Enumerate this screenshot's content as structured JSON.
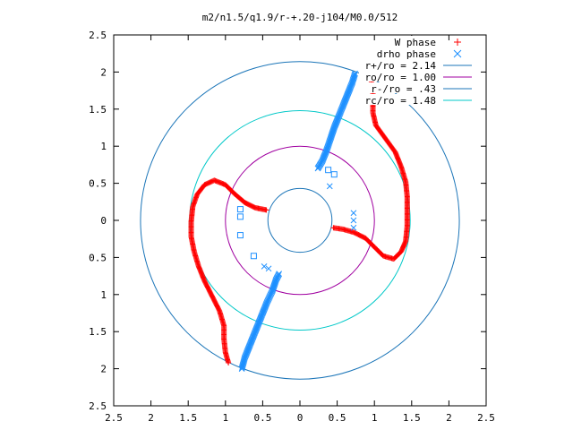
{
  "chart_data": {
    "type": "scatter",
    "title": "m2/n1.5/q1.9/r-+.20-j104/M0.0/512",
    "xlabel": "",
    "ylabel": "",
    "xlim": [
      -2.5,
      2.5
    ],
    "ylim": [
      -2.5,
      2.5
    ],
    "x_tick_values": [
      -2.5,
      -2,
      -1.5,
      -1,
      -0.5,
      0,
      0.5,
      1,
      1.5,
      2,
      2.5
    ],
    "x_tick_labels": [
      "2.5",
      "2",
      "1.5",
      "1",
      "0.5",
      "0",
      "0.5",
      "1",
      "1.5",
      "2",
      "2.5"
    ],
    "y_tick_values": [
      2.5,
      2,
      1.5,
      1,
      0.5,
      0,
      -0.5,
      -1,
      -1.5,
      -2,
      -2.5
    ],
    "y_tick_labels": [
      "2.5",
      "2",
      "1.5",
      "1",
      "0.5",
      "0",
      "0.5",
      "1",
      "1.5",
      "2",
      "2.5"
    ],
    "grid": false,
    "legend_position": "top-right",
    "series": [
      {
        "name": "W phase",
        "marker": "plus",
        "color": "#ff0000",
        "arms": [
          [
            [
              0.96,
              1.87
            ],
            [
              0.98,
              1.75
            ],
            [
              0.98,
              1.6
            ],
            [
              0.98,
              1.45
            ],
            [
              1.02,
              1.28
            ],
            [
              1.15,
              1.1
            ],
            [
              1.28,
              0.92
            ],
            [
              1.36,
              0.72
            ],
            [
              1.42,
              0.52
            ],
            [
              1.44,
              0.32
            ],
            [
              1.44,
              0.12
            ],
            [
              1.44,
              -0.08
            ],
            [
              1.42,
              -0.28
            ],
            [
              1.36,
              -0.42
            ],
            [
              1.26,
              -0.52
            ],
            [
              1.12,
              -0.48
            ],
            [
              1.0,
              -0.36
            ],
            [
              0.88,
              -0.24
            ],
            [
              0.72,
              -0.16
            ],
            [
              0.58,
              -0.12
            ],
            [
              0.45,
              -0.1
            ]
          ],
          [
            [
              -0.96,
              -1.92
            ],
            [
              -1.0,
              -1.78
            ],
            [
              -1.02,
              -1.6
            ],
            [
              -1.02,
              -1.42
            ],
            [
              -1.08,
              -1.22
            ],
            [
              -1.18,
              -1.02
            ],
            [
              -1.28,
              -0.82
            ],
            [
              -1.36,
              -0.62
            ],
            [
              -1.42,
              -0.42
            ],
            [
              -1.46,
              -0.22
            ],
            [
              -1.46,
              -0.02
            ],
            [
              -1.44,
              0.18
            ],
            [
              -1.38,
              0.35
            ],
            [
              -1.28,
              0.48
            ],
            [
              -1.15,
              0.54
            ],
            [
              -1.0,
              0.48
            ],
            [
              -0.88,
              0.36
            ],
            [
              -0.74,
              0.24
            ],
            [
              -0.6,
              0.17
            ],
            [
              -0.45,
              0.14
            ]
          ]
        ]
      },
      {
        "name": "drho phase",
        "marker": "cross",
        "color": "#1e90ff",
        "arms": [
          [
            [
              0.74,
              1.98
            ],
            [
              0.7,
              1.85
            ],
            [
              0.64,
              1.7
            ],
            [
              0.58,
              1.55
            ],
            [
              0.52,
              1.4
            ],
            [
              0.46,
              1.25
            ],
            [
              0.41,
              1.1
            ],
            [
              0.36,
              0.95
            ],
            [
              0.3,
              0.8
            ],
            [
              0.24,
              0.7
            ]
          ],
          [
            [
              -0.78,
              -2.0
            ],
            [
              -0.74,
              -1.85
            ],
            [
              -0.68,
              -1.7
            ],
            [
              -0.6,
              -1.5
            ],
            [
              -0.52,
              -1.3
            ],
            [
              -0.44,
              -1.1
            ],
            [
              -0.37,
              -0.95
            ],
            [
              -0.32,
              -0.8
            ],
            [
              -0.28,
              -0.72
            ]
          ]
        ],
        "extra_points": [
          [
            0.4,
            0.46
          ],
          [
            0.72,
            0.1
          ],
          [
            0.72,
            0.0
          ],
          [
            0.72,
            -0.1
          ],
          [
            -0.48,
            -0.62
          ],
          [
            -0.42,
            -0.65
          ]
        ]
      },
      {
        "name": "",
        "marker": "square",
        "color": "#1e90ff",
        "points": [
          [
            0.38,
            0.68
          ],
          [
            0.46,
            0.62
          ],
          [
            -0.8,
            0.15
          ],
          [
            -0.8,
            0.05
          ],
          [
            -0.8,
            -0.2
          ],
          [
            -0.62,
            -0.48
          ]
        ]
      }
    ],
    "circles": [
      {
        "name": "r+/ro = 2.14",
        "radius": 2.14,
        "color": "#1b75b8"
      },
      {
        "name": "ro/ro = 1.00",
        "radius": 1.0,
        "color": "#a000a0"
      },
      {
        "name": "r-/ro = .43",
        "radius": 0.43,
        "color": "#1b75b8"
      },
      {
        "name": "rc/ro = 1.48",
        "radius": 1.48,
        "color": "#00c8c8"
      }
    ]
  }
}
